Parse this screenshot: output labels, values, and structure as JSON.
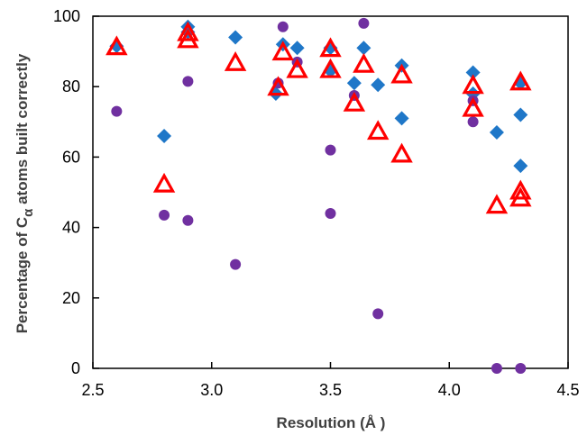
{
  "chart_data": {
    "type": "scatter",
    "xlabel": "Resolution (Å )",
    "ylabel_parts": [
      "Percentage of C",
      "α",
      " atoms built correctly"
    ],
    "xlim": [
      2.5,
      4.5
    ],
    "ylim": [
      0,
      100
    ],
    "x_ticks": [
      "2.5",
      "3.0",
      "3.5",
      "4.0",
      "4.5"
    ],
    "y_ticks": [
      "0",
      "20",
      "40",
      "60",
      "80",
      "100"
    ],
    "grid": false,
    "legend": "none",
    "series": [
      {
        "marker": "diamond",
        "color": "#1f77c8",
        "points": [
          [
            2.6,
            91.5
          ],
          [
            2.8,
            66
          ],
          [
            2.9,
            97
          ],
          [
            2.9,
            95.5
          ],
          [
            3.1,
            94
          ],
          [
            3.27,
            78
          ],
          [
            3.3,
            92
          ],
          [
            3.36,
            91
          ],
          [
            3.5,
            91
          ],
          [
            3.5,
            84.5
          ],
          [
            3.6,
            81
          ],
          [
            3.64,
            91
          ],
          [
            3.7,
            80.5
          ],
          [
            3.8,
            86
          ],
          [
            3.8,
            71
          ],
          [
            4.1,
            84
          ],
          [
            4.1,
            78
          ],
          [
            4.2,
            67
          ],
          [
            4.3,
            81
          ],
          [
            4.3,
            72
          ],
          [
            4.3,
            57.5
          ]
        ]
      },
      {
        "marker": "circle",
        "color": "#7030a0",
        "points": [
          [
            2.6,
            73
          ],
          [
            2.8,
            43.5
          ],
          [
            2.9,
            81.5
          ],
          [
            2.9,
            42
          ],
          [
            3.1,
            29.5
          ],
          [
            3.28,
            81
          ],
          [
            3.3,
            97
          ],
          [
            3.36,
            87
          ],
          [
            3.5,
            62
          ],
          [
            3.5,
            44
          ],
          [
            3.6,
            77.5
          ],
          [
            3.64,
            98
          ],
          [
            3.7,
            15.5
          ],
          [
            4.1,
            76
          ],
          [
            4.1,
            70
          ],
          [
            4.2,
            0
          ],
          [
            4.3,
            0
          ]
        ]
      },
      {
        "marker": "triangle",
        "color": "#ff0000",
        "points": [
          [
            2.6,
            91
          ],
          [
            2.8,
            52
          ],
          [
            2.9,
            95
          ],
          [
            2.9,
            93
          ],
          [
            3.1,
            86.5
          ],
          [
            3.28,
            79.5
          ],
          [
            3.3,
            89.5
          ],
          [
            3.36,
            84.5
          ],
          [
            3.5,
            90.5
          ],
          [
            3.5,
            84.5
          ],
          [
            3.6,
            75
          ],
          [
            3.64,
            86
          ],
          [
            3.7,
            67
          ],
          [
            3.8,
            83
          ],
          [
            3.8,
            60.5
          ],
          [
            4.1,
            80
          ],
          [
            4.1,
            73.5
          ],
          [
            4.2,
            46
          ],
          [
            4.3,
            81
          ],
          [
            4.3,
            50
          ],
          [
            4.3,
            48
          ]
        ]
      }
    ]
  }
}
